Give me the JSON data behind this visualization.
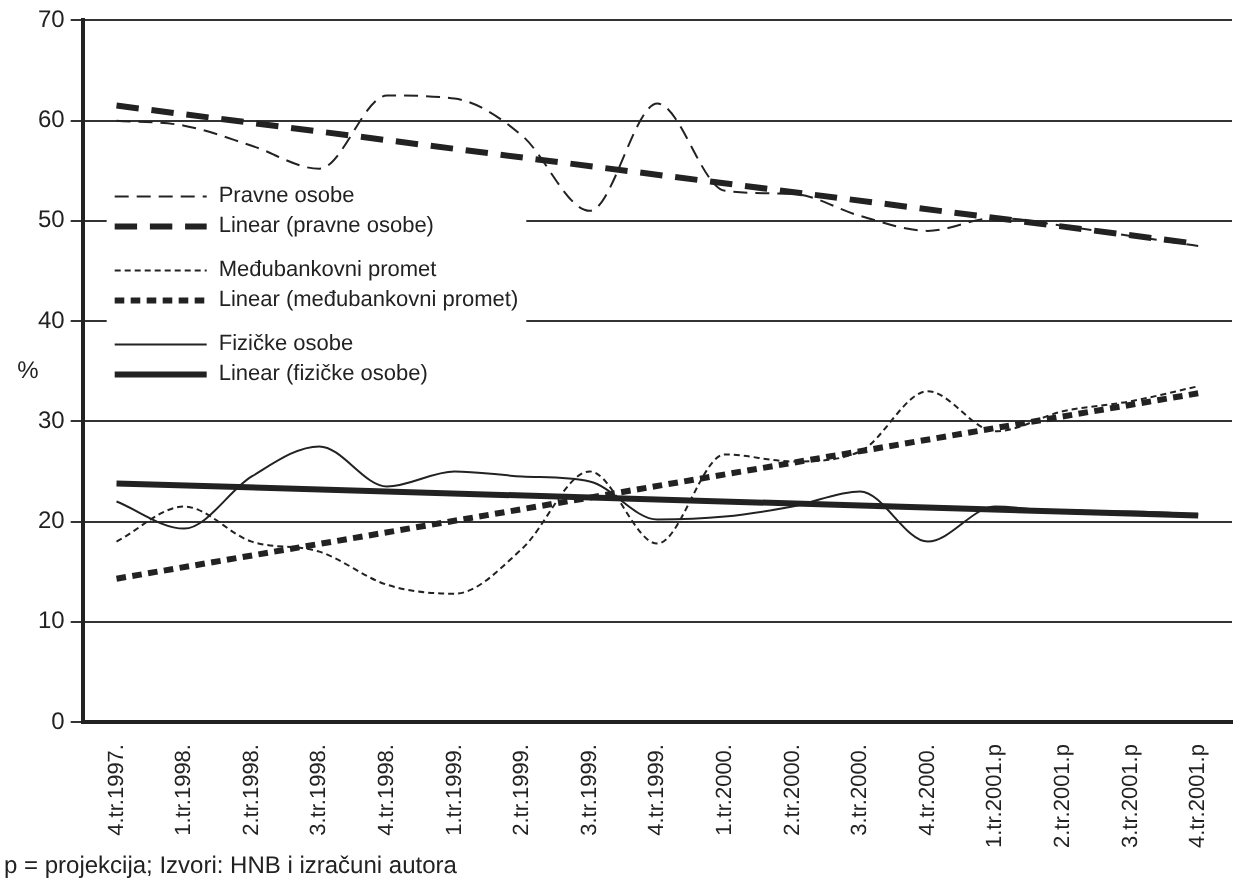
{
  "chart_data": {
    "type": "line",
    "ylabel": "%",
    "categories": [
      "4.tr.1997.",
      "1.tr.1998.",
      "2.tr.1998.",
      "3.tr.1998.",
      "4.tr.1998.",
      "1.tr.1999.",
      "2.tr.1999.",
      "3.tr.1999.",
      "4.tr.1999.",
      "1.tr.2000.",
      "2.tr.2000.",
      "3.tr.2000.",
      "4.tr.2000.",
      "1.tr.2001.p",
      "2.tr.2001.p",
      "3.tr.2001.p",
      "4.tr.2001.p"
    ],
    "series": [
      {
        "name": "Pravne osobe",
        "color": "#222222",
        "line_style": "dashed",
        "values": [
          60,
          59.5,
          57.5,
          55.2,
          62.5,
          62.2,
          58.5,
          51,
          61.7,
          53,
          52.7,
          50.5,
          49,
          50.3,
          49.5,
          48.5,
          47.5
        ]
      },
      {
        "name": "Linear (pravne osobe)",
        "color": "#222222",
        "line_style": "dashed",
        "x": [
          "4.tr.1997.",
          "4.tr.2001.p"
        ],
        "values": [
          61.5,
          47.7
        ]
      },
      {
        "name": "Međubankovni promet",
        "color": "#222222",
        "line_style": "dotted",
        "values": [
          18,
          21.5,
          18,
          17,
          13.7,
          12.8,
          17.3,
          25,
          17.8,
          26.7,
          26,
          27,
          33,
          29,
          31,
          32,
          33.5
        ]
      },
      {
        "name": "Linear (međubankovni promet)",
        "color": "#222222",
        "line_style": "dotted",
        "x": [
          "4.tr.1997.",
          "4.tr.2001.p"
        ],
        "values": [
          14.3,
          32.8
        ]
      },
      {
        "name": "Fizičke osobe",
        "color": "#222222",
        "line_style": "solid",
        "values": [
          22,
          19.3,
          24.5,
          27.5,
          23.5,
          25,
          24.5,
          24,
          20.2,
          20.5,
          21.5,
          23,
          18,
          21.5,
          21,
          21,
          20.7
        ]
      },
      {
        "name": "Linear (fizičke osobe)",
        "color": "#222222",
        "line_style": "solid",
        "x": [
          "4.tr.1997.",
          "4.tr.2001.p"
        ],
        "values": [
          23.8,
          20.6
        ]
      }
    ],
    "ylim": [
      0,
      70
    ],
    "yticks": [
      0,
      10,
      20,
      30,
      40,
      50,
      60,
      70
    ],
    "grid": "y",
    "legend": "top left",
    "marker": "none",
    "annotations": [
      "p = projekcija; Izvori: HNB i izračuni autora"
    ]
  }
}
